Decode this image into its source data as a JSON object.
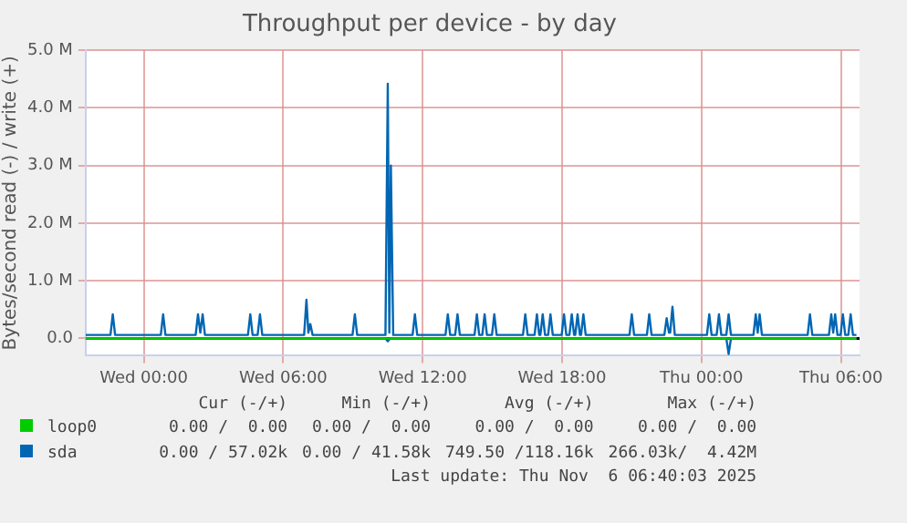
{
  "chart_data": {
    "type": "line",
    "title": "Throughput per device - by day",
    "ylabel": "Bytes/second read (-) / write (+)",
    "xlim": [
      "2025-11-04T21:30",
      "2025-11-06T06:48"
    ],
    "xticks": [
      {
        "value": "2025-11-05T00:00",
        "label": "Wed 00:00"
      },
      {
        "value": "2025-11-05T06:00",
        "label": "Wed 06:00"
      },
      {
        "value": "2025-11-05T12:00",
        "label": "Wed 12:00"
      },
      {
        "value": "2025-11-05T18:00",
        "label": "Wed 18:00"
      },
      {
        "value": "2025-11-06T00:00",
        "label": "Thu 00:00"
      },
      {
        "value": "2025-11-06T06:00",
        "label": "Thu 06:00"
      }
    ],
    "ylim": [
      -0.3,
      5.0
    ],
    "yticks": [
      {
        "value": 0,
        "label": "0.0"
      },
      {
        "value": 1,
        "label": "1.0 M"
      },
      {
        "value": 2,
        "label": "2.0 M"
      },
      {
        "value": 3,
        "label": "3.0 M"
      },
      {
        "value": 4,
        "label": "4.0 M"
      },
      {
        "value": 5,
        "label": "5.0 M"
      }
    ],
    "grid": true,
    "legend": "bottom left",
    "marker": "none",
    "line_style": "solid",
    "ref_lines": [
      {
        "axis": "y",
        "value": 0,
        "color": "#000000"
      }
    ],
    "series": [
      {
        "name": "loop0",
        "color": "#00cc00",
        "x": [
          "2025-11-04T21:30",
          "2025-11-06T06:40"
        ],
        "values": [
          0,
          0
        ]
      },
      {
        "name": "sda",
        "color": "#0066b3",
        "x": [
          "2025-11-04T21:30",
          "2025-11-04T22:34",
          "2025-11-04T22:40",
          "2025-11-04T22:46",
          "2025-11-05T00:44",
          "2025-11-05T00:50",
          "2025-11-05T00:56",
          "2025-11-05T02:14",
          "2025-11-05T02:20",
          "2025-11-05T02:26",
          "2025-11-05T02:32",
          "2025-11-05T02:38",
          "2025-11-05T04:29",
          "2025-11-05T04:35",
          "2025-11-05T04:41",
          "2025-11-05T04:54",
          "2025-11-05T05:00",
          "2025-11-05T05:06",
          "2025-11-05T06:54",
          "2025-11-05T07:00",
          "2025-11-05T07:05",
          "2025-11-05T07:10",
          "2025-11-05T07:16",
          "2025-11-05T08:59",
          "2025-11-05T09:05",
          "2025-11-05T09:11",
          "2025-11-05T10:24",
          "2025-11-05T10:30",
          "2025-11-05T10:34",
          "2025-11-05T10:38",
          "2025-11-05T10:44",
          "2025-11-05T11:34",
          "2025-11-05T11:40",
          "2025-11-05T11:46",
          "2025-11-05T12:59",
          "2025-11-05T13:05",
          "2025-11-05T13:11",
          "2025-11-05T13:24",
          "2025-11-05T13:30",
          "2025-11-05T13:36",
          "2025-11-05T14:14",
          "2025-11-05T14:20",
          "2025-11-05T14:26",
          "2025-11-05T14:34",
          "2025-11-05T14:40",
          "2025-11-05T14:46",
          "2025-11-05T14:59",
          "2025-11-05T15:05",
          "2025-11-05T15:11",
          "2025-11-05T16:19",
          "2025-11-05T16:25",
          "2025-11-05T16:31",
          "2025-11-05T16:49",
          "2025-11-05T16:55",
          "2025-11-05T17:01",
          "2025-11-05T17:04",
          "2025-11-05T17:10",
          "2025-11-05T17:16",
          "2025-11-05T17:24",
          "2025-11-05T17:30",
          "2025-11-05T17:36",
          "2025-11-05T17:59",
          "2025-11-05T18:05",
          "2025-11-05T18:11",
          "2025-11-05T18:19",
          "2025-11-05T18:25",
          "2025-11-05T18:31",
          "2025-11-05T18:34",
          "2025-11-05T18:40",
          "2025-11-05T18:46",
          "2025-11-05T18:49",
          "2025-11-05T18:55",
          "2025-11-05T19:01",
          "2025-11-05T20:54",
          "2025-11-05T21:00",
          "2025-11-05T21:06",
          "2025-11-05T21:39",
          "2025-11-05T21:45",
          "2025-11-05T21:51",
          "2025-11-05T22:24",
          "2025-11-05T22:30",
          "2025-11-05T22:36",
          "2025-11-05T22:39",
          "2025-11-05T22:45",
          "2025-11-05T22:51",
          "2025-11-06T00:14",
          "2025-11-06T00:20",
          "2025-11-06T00:26",
          "2025-11-06T00:39",
          "2025-11-06T00:45",
          "2025-11-06T00:51",
          "2025-11-06T01:04",
          "2025-11-06T01:10",
          "2025-11-06T01:16",
          "2025-11-06T02:14",
          "2025-11-06T02:20",
          "2025-11-06T02:25",
          "2025-11-06T02:30",
          "2025-11-06T02:36",
          "2025-11-06T04:34",
          "2025-11-06T04:40",
          "2025-11-06T04:46",
          "2025-11-06T05:29",
          "2025-11-06T05:35",
          "2025-11-06T05:40",
          "2025-11-06T05:45",
          "2025-11-06T05:51",
          "2025-11-06T05:59",
          "2025-11-06T06:05",
          "2025-11-06T06:11",
          "2025-11-06T06:19",
          "2025-11-06T06:25",
          "2025-11-06T06:31",
          "2025-11-06T06:40"
        ],
        "values": [
          0.06,
          0.06,
          0.42,
          0.06,
          0.06,
          0.42,
          0.06,
          0.06,
          0.42,
          0.1,
          0.42,
          0.06,
          0.06,
          0.42,
          0.06,
          0.06,
          0.42,
          0.06,
          0.06,
          0.67,
          0.1,
          0.25,
          0.06,
          0.06,
          0.42,
          0.06,
          0.06,
          4.42,
          0.1,
          3.0,
          0.06,
          0.06,
          0.42,
          0.06,
          0.06,
          0.42,
          0.06,
          0.06,
          0.42,
          0.06,
          0.06,
          0.42,
          0.06,
          0.06,
          0.42,
          0.06,
          0.06,
          0.42,
          0.06,
          0.06,
          0.42,
          0.06,
          0.06,
          0.42,
          0.06,
          0.06,
          0.42,
          0.06,
          0.06,
          0.42,
          0.06,
          0.06,
          0.42,
          0.06,
          0.06,
          0.42,
          0.06,
          0.06,
          0.42,
          0.06,
          0.06,
          0.42,
          0.06,
          0.06,
          0.42,
          0.06,
          0.06,
          0.42,
          0.06,
          0.06,
          0.35,
          0.1,
          0.1,
          0.55,
          0.06,
          0.06,
          0.42,
          0.06,
          0.06,
          0.42,
          0.06,
          0.06,
          0.42,
          0.06,
          0.06,
          0.42,
          0.1,
          0.42,
          0.06,
          0.06,
          0.42,
          0.06,
          0.06,
          0.42,
          0.1,
          0.42,
          0.06,
          0.06,
          0.42,
          0.06,
          0.06,
          0.42,
          0.06,
          0.06
        ]
      },
      {
        "color": "#0066b3",
        "x": [
          "2025-11-04T21:30",
          "2025-11-05T10:24",
          "2025-11-05T10:30",
          "2025-11-05T10:36",
          "2025-11-06T01:04",
          "2025-11-06T01:10",
          "2025-11-06T01:16",
          "2025-11-06T06:40"
        ],
        "values": [
          0,
          0,
          -0.05,
          0,
          0,
          -0.27,
          0,
          0
        ]
      }
    ],
    "annotations": [
      "Cur (-/+)",
      "Min (-/+)",
      "Avg (-/+)",
      "Max (-/+)",
      "0.00 /  0.00",
      "0.00 /  0.00",
      "0.00 /  0.00",
      "0.00 /  0.00",
      "0.00 / 57.02k",
      "0.00 / 41.58k",
      "749.50 /118.16k",
      "266.03k/  4.42M",
      "Last update: Thu Nov  6 06:40:03 2025"
    ]
  }
}
